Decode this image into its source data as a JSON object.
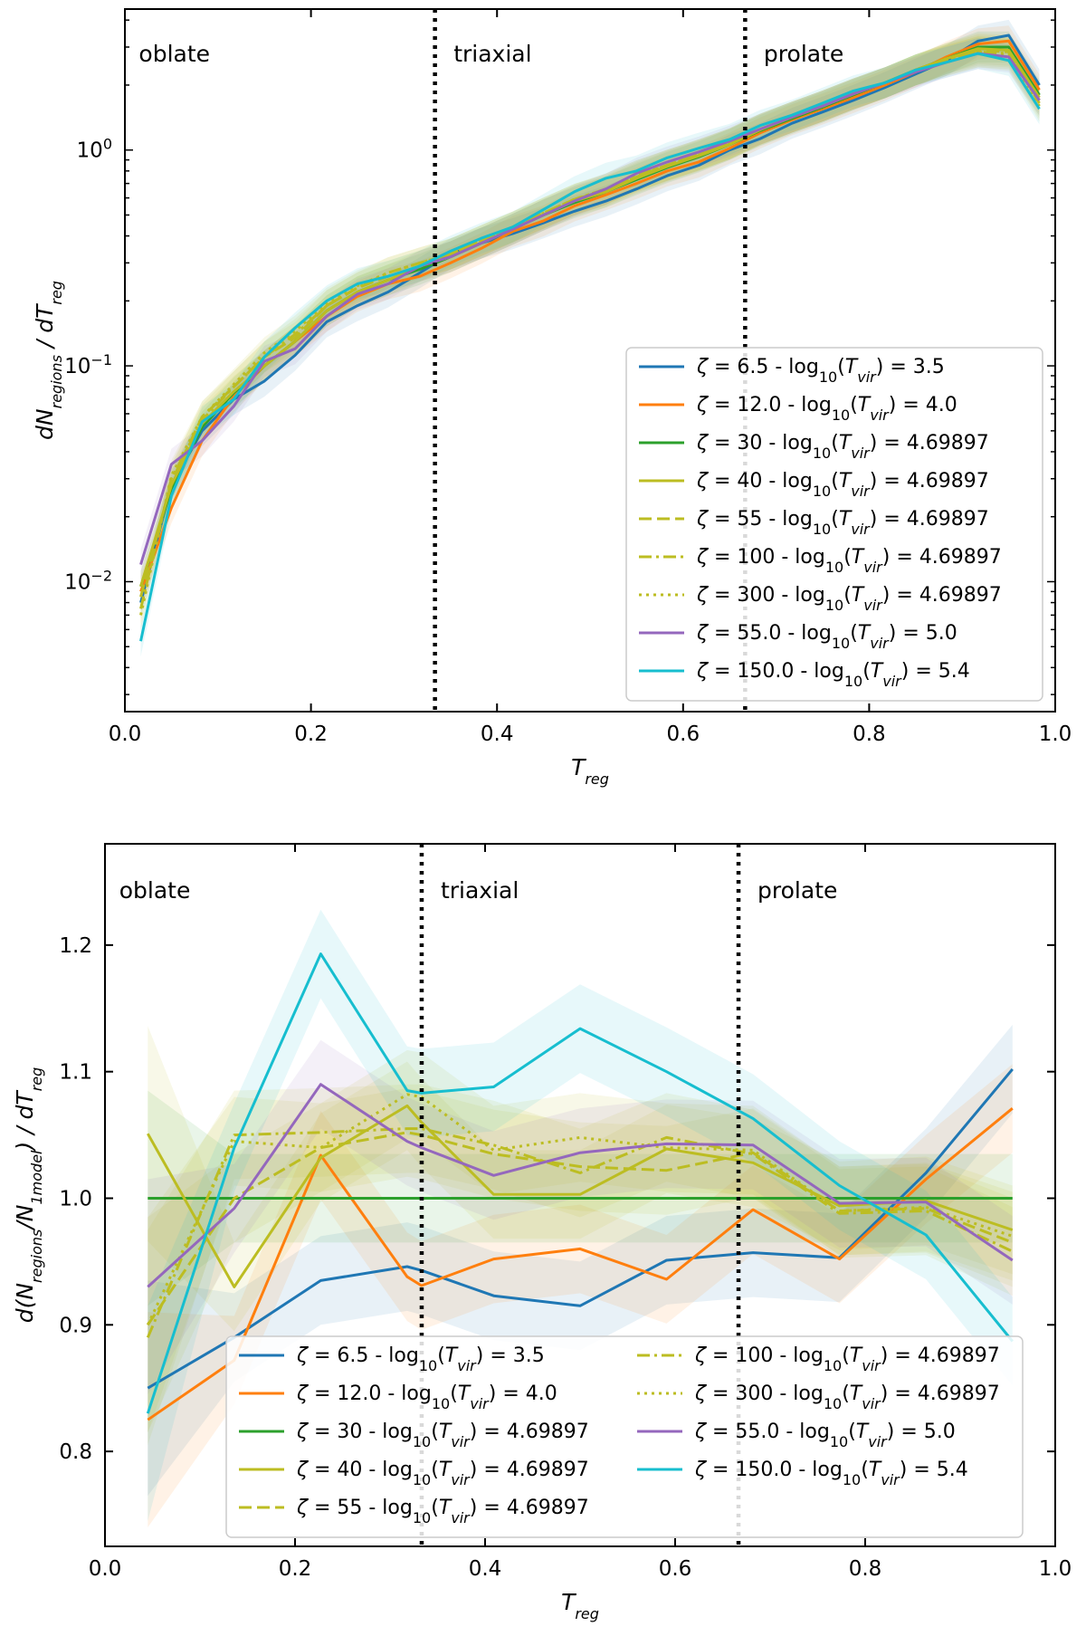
{
  "chart_data": [
    {
      "panel": "top",
      "type": "line",
      "y_scale": "log",
      "xlabel": "T_reg",
      "ylabel": "dN_regions / dT_reg",
      "xlim": [
        0.0,
        1.0
      ],
      "ylim": [
        0.0025,
        4.5
      ],
      "x_ticks": [
        0.0,
        0.2,
        0.4,
        0.6,
        0.8,
        1.0
      ],
      "x_tick_labels": [
        "0.0",
        "0.2",
        "0.4",
        "0.6",
        "0.8",
        "1.0"
      ],
      "y_ticks": [
        0.01,
        0.1,
        1.0
      ],
      "y_tick_labels": [
        "10⁻²",
        "10⁻¹",
        "10⁰"
      ],
      "region_lines": [
        0.3333,
        0.6667
      ],
      "region_labels": [
        "oblate",
        "triaxial",
        "prolate"
      ],
      "legend_position": "lower-right",
      "legend_columns": 1,
      "x": [
        0.017,
        0.05,
        0.083,
        0.117,
        0.15,
        0.183,
        0.217,
        0.25,
        0.283,
        0.317,
        0.35,
        0.383,
        0.417,
        0.45,
        0.483,
        0.517,
        0.55,
        0.583,
        0.617,
        0.65,
        0.683,
        0.717,
        0.75,
        0.783,
        0.817,
        0.85,
        0.883,
        0.917,
        0.95,
        0.983
      ],
      "series": [
        {
          "name": "ζ = 6.5 - log10(Tvir) = 3.5",
          "color": "#1f77b4",
          "dash": "solid",
          "values": [
            0.008,
            0.028,
            0.05,
            0.07,
            0.085,
            0.112,
            0.16,
            0.19,
            0.22,
            0.27,
            0.33,
            0.37,
            0.41,
            0.46,
            0.52,
            0.58,
            0.66,
            0.76,
            0.85,
            1.0,
            1.13,
            1.33,
            1.5,
            1.7,
            1.95,
            2.25,
            2.6,
            3.2,
            3.4,
            2.0
          ]
        },
        {
          "name": "ζ = 12.0 - log10(Tvir) = 4.0",
          "color": "#ff7f0e",
          "dash": "solid",
          "values": [
            0.009,
            0.022,
            0.045,
            0.072,
            0.1,
            0.13,
            0.17,
            0.21,
            0.24,
            0.26,
            0.3,
            0.35,
            0.42,
            0.47,
            0.55,
            0.62,
            0.7,
            0.8,
            0.88,
            1.02,
            1.2,
            1.38,
            1.55,
            1.75,
            2.0,
            2.3,
            2.7,
            3.1,
            3.2,
            1.9
          ]
        },
        {
          "name": "ζ = 30 - log10(Tvir) = 4.69897",
          "color": "#2ca02c",
          "dash": "solid",
          "values": [
            0.0095,
            0.027,
            0.052,
            0.075,
            0.1,
            0.13,
            0.18,
            0.22,
            0.25,
            0.28,
            0.32,
            0.37,
            0.43,
            0.5,
            0.57,
            0.64,
            0.73,
            0.83,
            0.93,
            1.06,
            1.23,
            1.4,
            1.58,
            1.8,
            2.05,
            2.35,
            2.65,
            3.0,
            3.0,
            1.8
          ]
        },
        {
          "name": "ζ = 40 - log10(Tvir) = 4.69897",
          "color": "#bcbd22",
          "dash": "solid",
          "values": [
            0.0095,
            0.028,
            0.054,
            0.076,
            0.1,
            0.13,
            0.18,
            0.22,
            0.25,
            0.29,
            0.32,
            0.37,
            0.43,
            0.5,
            0.58,
            0.64,
            0.74,
            0.84,
            0.94,
            1.06,
            1.24,
            1.42,
            1.6,
            1.82,
            2.05,
            2.35,
            2.65,
            2.95,
            2.9,
            1.75
          ]
        },
        {
          "name": "ζ = 55 - log10(Tvir) = 4.69897",
          "color": "#bcbd22",
          "dash": "dashed",
          "values": [
            0.0085,
            0.029,
            0.058,
            0.08,
            0.11,
            0.135,
            0.19,
            0.23,
            0.26,
            0.29,
            0.33,
            0.38,
            0.44,
            0.51,
            0.59,
            0.65,
            0.75,
            0.85,
            0.95,
            1.07,
            1.25,
            1.42,
            1.6,
            1.82,
            2.05,
            2.35,
            2.65,
            2.9,
            2.85,
            1.7
          ]
        },
        {
          "name": "ζ = 100 - log10(Tvir) = 4.69897",
          "color": "#bcbd22",
          "dash": "dashdot",
          "values": [
            0.0075,
            0.03,
            0.056,
            0.08,
            0.11,
            0.14,
            0.19,
            0.23,
            0.27,
            0.3,
            0.33,
            0.38,
            0.44,
            0.51,
            0.59,
            0.66,
            0.76,
            0.85,
            0.95,
            1.07,
            1.25,
            1.42,
            1.6,
            1.82,
            2.05,
            2.35,
            2.6,
            2.85,
            2.8,
            1.65
          ]
        },
        {
          "name": "ζ = 300 - log10(Tvir) = 4.69897",
          "color": "#bcbd22",
          "dash": "dotted",
          "values": [
            0.007,
            0.031,
            0.058,
            0.082,
            0.115,
            0.145,
            0.195,
            0.235,
            0.27,
            0.3,
            0.33,
            0.38,
            0.44,
            0.51,
            0.59,
            0.66,
            0.76,
            0.85,
            0.95,
            1.07,
            1.25,
            1.42,
            1.6,
            1.82,
            2.05,
            2.35,
            2.6,
            2.85,
            2.75,
            1.6
          ]
        },
        {
          "name": "ζ = 55.0 - log10(Tvir) = 5.0",
          "color": "#9467bd",
          "dash": "solid",
          "values": [
            0.012,
            0.035,
            0.045,
            0.065,
            0.105,
            0.12,
            0.17,
            0.215,
            0.24,
            0.29,
            0.32,
            0.37,
            0.43,
            0.5,
            0.58,
            0.66,
            0.78,
            0.88,
            0.98,
            1.1,
            1.25,
            1.42,
            1.6,
            1.82,
            2.05,
            2.3,
            2.55,
            2.8,
            2.7,
            1.7
          ]
        },
        {
          "name": "ζ = 150.0 - log10(Tvir) = 5.4",
          "color": "#17becf",
          "dash": "solid",
          "values": [
            0.0053,
            0.025,
            0.055,
            0.07,
            0.11,
            0.15,
            0.2,
            0.24,
            0.26,
            0.29,
            0.34,
            0.39,
            0.44,
            0.53,
            0.64,
            0.74,
            0.8,
            0.92,
            1.02,
            1.12,
            1.3,
            1.45,
            1.65,
            1.88,
            2.05,
            2.35,
            2.55,
            2.8,
            2.6,
            1.55
          ]
        }
      ]
    },
    {
      "panel": "bottom",
      "type": "line",
      "y_scale": "linear",
      "xlabel": "T_reg",
      "ylabel": "d(N_regions/N_1model) / dT_reg",
      "xlim": [
        0.0,
        1.0
      ],
      "ylim": [
        0.725,
        1.28
      ],
      "x_ticks": [
        0.0,
        0.2,
        0.4,
        0.6,
        0.8,
        1.0
      ],
      "x_tick_labels": [
        "0.0",
        "0.2",
        "0.4",
        "0.6",
        "0.8",
        "1.0"
      ],
      "y_ticks": [
        0.8,
        0.9,
        1.0,
        1.1,
        1.2
      ],
      "y_tick_labels": [
        "0.8",
        "0.9",
        "1.0",
        "1.1",
        "1.2"
      ],
      "region_lines": [
        0.3333,
        0.6667
      ],
      "region_labels": [
        "oblate",
        "triaxial",
        "prolate"
      ],
      "legend_position": "lower-center",
      "legend_columns": 2,
      "x": [
        0.045,
        0.136,
        0.227,
        0.318,
        0.333,
        0.409,
        0.5,
        0.591,
        0.682,
        0.773,
        0.864,
        0.955
      ],
      "series": [
        {
          "name": "ζ = 6.5 - log10(Tvir) = 3.5",
          "color": "#1f77b4",
          "dash": "solid",
          "values": [
            0.85,
            0.89,
            0.935,
            0.946,
            0.943,
            0.923,
            0.915,
            0.951,
            0.957,
            0.953,
            1.02,
            1.102
          ]
        },
        {
          "name": "ζ = 12.0 - log10(Tvir) = 4.0",
          "color": "#ff7f0e",
          "dash": "solid",
          "values": [
            0.825,
            0.872,
            1.034,
            0.938,
            0.931,
            0.952,
            0.96,
            0.936,
            0.991,
            0.952,
            1.015,
            1.071
          ]
        },
        {
          "name": "ζ = 30 - log10(Tvir) = 4.69897",
          "color": "#2ca02c",
          "dash": "solid",
          "values": [
            1.0,
            1.0,
            1.0,
            1.0,
            1.0,
            1.0,
            1.0,
            1.0,
            1.0,
            1.0,
            1.0,
            1.0
          ]
        },
        {
          "name": "ζ = 40 - log10(Tvir) = 4.69897",
          "color": "#bcbd22",
          "dash": "solid",
          "values": [
            1.051,
            0.93,
            1.032,
            1.073,
            1.06,
            1.003,
            1.003,
            1.039,
            1.028,
            0.994,
            0.998,
            0.975
          ]
        },
        {
          "name": "ζ = 55 - log10(Tvir) = 4.69897",
          "color": "#bcbd22",
          "dash": "dashed",
          "values": [
            0.9,
            1.0,
            1.04,
            1.052,
            1.05,
            1.035,
            1.025,
            1.022,
            1.036,
            0.99,
            0.992,
            0.965
          ]
        },
        {
          "name": "ζ = 100 - log10(Tvir) = 4.69897",
          "color": "#bcbd22",
          "dash": "dashdot",
          "values": [
            0.89,
            1.05,
            1.052,
            1.055,
            1.055,
            1.042,
            1.02,
            1.048,
            1.035,
            0.988,
            0.99,
            0.958
          ]
        },
        {
          "name": "ζ = 300 - log10(Tvir) = 4.69897",
          "color": "#bcbd22",
          "dash": "dotted",
          "values": [
            0.9,
            1.045,
            1.04,
            1.082,
            1.08,
            1.038,
            1.048,
            1.04,
            1.038,
            0.99,
            0.993,
            0.97
          ]
        },
        {
          "name": "ζ = 55.0 - log10(Tvir) = 5.0",
          "color": "#9467bd",
          "dash": "solid",
          "values": [
            0.93,
            0.992,
            1.09,
            1.045,
            1.04,
            1.018,
            1.036,
            1.043,
            1.042,
            0.996,
            0.997,
            0.951
          ]
        },
        {
          "name": "ζ = 150.0 - log10(Tvir) = 5.4",
          "color": "#17becf",
          "dash": "solid",
          "values": [
            0.83,
            1.04,
            1.193,
            1.085,
            1.083,
            1.088,
            1.134,
            1.1,
            1.063,
            1.01,
            0.971,
            0.887
          ]
        }
      ]
    }
  ]
}
